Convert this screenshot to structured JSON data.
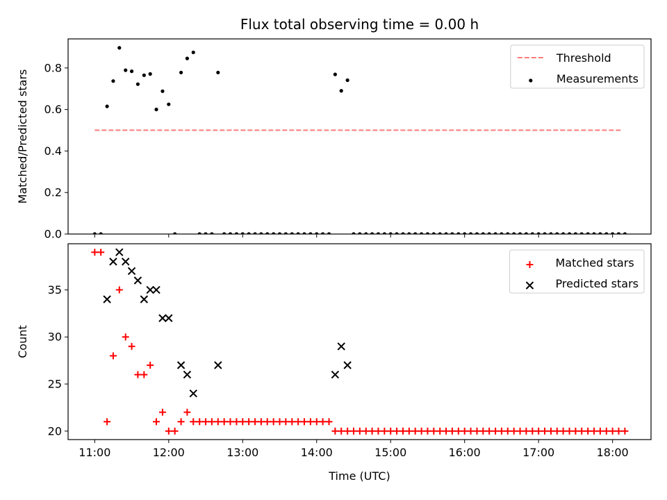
{
  "chart_data": [
    {
      "type": "scatter",
      "title": "Flux total observing time = 0.00 h",
      "xlabel": "",
      "ylabel": "Matched/Predicted stars",
      "xlim": [
        10.64,
        18.52
      ],
      "ylim": [
        0.0,
        0.94
      ],
      "xticks": [
        11,
        12,
        13,
        14,
        15,
        16,
        17,
        18
      ],
      "yticks": [
        0.0,
        0.2,
        0.4,
        0.6,
        0.8
      ],
      "ytick_labels": [
        "0.0",
        "0.2",
        "0.4",
        "0.6",
        "0.8"
      ],
      "legend_position": "upper right",
      "grid": false,
      "threshold": {
        "name": "Threshold",
        "value": 0.5,
        "x_range": [
          11.0,
          18.13
        ],
        "color": "#ff7b7b",
        "style": "dashed"
      },
      "series": [
        {
          "name": "Measurements",
          "color": "#000000",
          "marker": "dot",
          "x": [
            11.0,
            11.083,
            11.167,
            11.25,
            11.333,
            11.417,
            11.5,
            11.583,
            11.667,
            11.75,
            11.833,
            11.917,
            12.0,
            12.083,
            12.167,
            12.25,
            12.333,
            12.417,
            12.5,
            12.583,
            12.667,
            12.75,
            12.833,
            12.917,
            13.0,
            13.083,
            13.167,
            13.25,
            13.333,
            13.417,
            13.5,
            13.583,
            13.667,
            13.75,
            13.833,
            13.917,
            14.0,
            14.083,
            14.167,
            14.25,
            14.333,
            14.417,
            14.5,
            14.583,
            14.667,
            14.75,
            14.833,
            14.917,
            15.0,
            15.083,
            15.167,
            15.25,
            15.333,
            15.417,
            15.5,
            15.583,
            15.667,
            15.75,
            15.833,
            15.917,
            16.0,
            16.083,
            16.167,
            16.25,
            16.333,
            16.417,
            16.5,
            16.583,
            16.667,
            16.75,
            16.833,
            16.917,
            17.0,
            17.083,
            17.167,
            17.25,
            17.333,
            17.417,
            17.5,
            17.583,
            17.667,
            17.75,
            17.833,
            17.917,
            18.0,
            18.083,
            18.167
          ],
          "y": [
            0.0,
            0.0,
            0.615,
            0.737,
            0.897,
            0.789,
            0.784,
            0.722,
            0.765,
            0.771,
            0.6,
            0.688,
            0.625,
            0.0,
            0.778,
            0.846,
            0.875,
            0.0,
            0.0,
            0.0,
            0.778,
            0.0,
            0.0,
            0.0,
            0.0,
            0.0,
            0.0,
            0.0,
            0.0,
            0.0,
            0.0,
            0.0,
            0.0,
            0.0,
            0.0,
            0.0,
            0.0,
            0.0,
            0.0,
            0.769,
            0.69,
            0.741,
            0.0,
            0.0,
            0.0,
            0.0,
            0.0,
            0.0,
            0.0,
            0.0,
            0.0,
            0.0,
            0.0,
            0.0,
            0.0,
            0.0,
            0.0,
            0.0,
            0.0,
            0.0,
            0.0,
            0.0,
            0.0,
            0.0,
            0.0,
            0.0,
            0.0,
            0.0,
            0.0,
            0.0,
            0.0,
            0.0,
            0.0,
            0.0,
            0.0,
            0.0,
            0.0,
            0.0,
            0.0,
            0.0,
            0.0,
            0.0,
            0.0,
            0.0,
            0.0,
            0.0,
            0.0
          ]
        }
      ]
    },
    {
      "type": "scatter",
      "title": "",
      "xlabel": "Time (UTC)",
      "ylabel": "Count",
      "xlim": [
        10.64,
        18.52
      ],
      "ylim": [
        19.1,
        39.9
      ],
      "xticks": [
        11,
        12,
        13,
        14,
        15,
        16,
        17,
        18
      ],
      "xtick_labels": [
        "11:00",
        "12:00",
        "13:00",
        "14:00",
        "15:00",
        "16:00",
        "17:00",
        "18:00"
      ],
      "yticks": [
        20,
        25,
        30,
        35
      ],
      "ytick_labels": [
        "20",
        "25",
        "30",
        "35"
      ],
      "legend_position": "upper right",
      "grid": false,
      "series": [
        {
          "name": "Matched stars",
          "color": "#ff0000",
          "marker": "plus",
          "x": [
            11.0,
            11.083,
            11.167,
            11.25,
            11.333,
            11.417,
            11.5,
            11.583,
            11.667,
            11.75,
            11.833,
            11.917,
            12.0,
            12.083,
            12.167,
            12.25,
            12.333,
            12.417,
            12.5,
            12.583,
            12.667,
            12.75,
            12.833,
            12.917,
            13.0,
            13.083,
            13.167,
            13.25,
            13.333,
            13.417,
            13.5,
            13.583,
            13.667,
            13.75,
            13.833,
            13.917,
            14.0,
            14.083,
            14.167,
            14.25,
            14.333,
            14.417,
            14.5,
            14.583,
            14.667,
            14.75,
            14.833,
            14.917,
            15.0,
            15.083,
            15.167,
            15.25,
            15.333,
            15.417,
            15.5,
            15.583,
            15.667,
            15.75,
            15.833,
            15.917,
            16.0,
            16.083,
            16.167,
            16.25,
            16.333,
            16.417,
            16.5,
            16.583,
            16.667,
            16.75,
            16.833,
            16.917,
            17.0,
            17.083,
            17.167,
            17.25,
            17.333,
            17.417,
            17.5,
            17.583,
            17.667,
            17.75,
            17.833,
            17.917,
            18.0,
            18.083,
            18.167
          ],
          "y": [
            39,
            39,
            21,
            28,
            35,
            30,
            29,
            26,
            26,
            27,
            21,
            22,
            20,
            20,
            21,
            22,
            21,
            21,
            21,
            21,
            21,
            21,
            21,
            21,
            21,
            21,
            21,
            21,
            21,
            21,
            21,
            21,
            21,
            21,
            21,
            21,
            21,
            21,
            21,
            20,
            20,
            20,
            20,
            20,
            20,
            20,
            20,
            20,
            20,
            20,
            20,
            20,
            20,
            20,
            20,
            20,
            20,
            20,
            20,
            20,
            20,
            20,
            20,
            20,
            20,
            20,
            20,
            20,
            20,
            20,
            20,
            20,
            20,
            20,
            20,
            20,
            20,
            20,
            20,
            20,
            20,
            20,
            20,
            20,
            20,
            20,
            20
          ]
        },
        {
          "name": "Predicted stars",
          "color": "#000000",
          "marker": "x",
          "x": [
            11.167,
            11.25,
            11.333,
            11.417,
            11.5,
            11.583,
            11.667,
            11.75,
            11.833,
            11.917,
            12.0,
            12.167,
            12.25,
            12.333,
            12.667,
            14.25,
            14.333,
            14.417
          ],
          "y": [
            34,
            38,
            39,
            38,
            37,
            36,
            34,
            35,
            35,
            32,
            32,
            27,
            26,
            24,
            27,
            26,
            29,
            27
          ]
        }
      ]
    }
  ]
}
